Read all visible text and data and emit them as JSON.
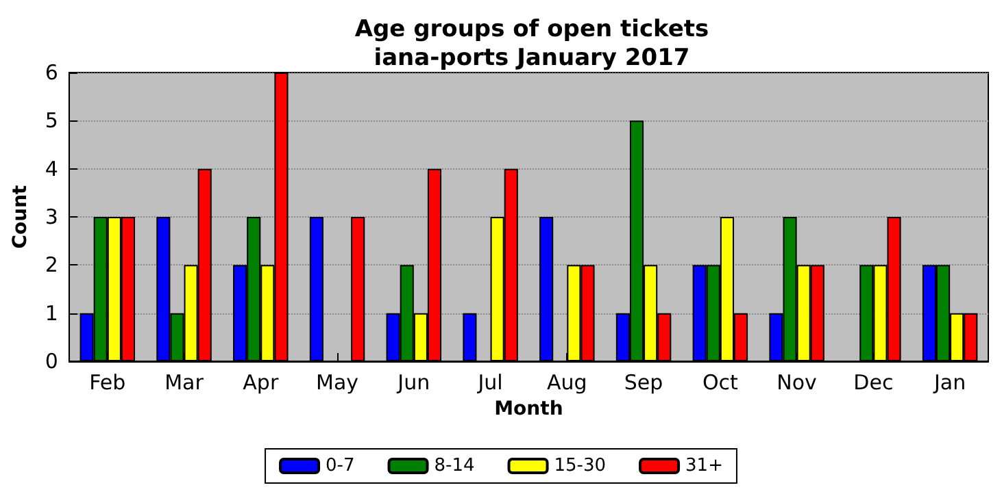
{
  "chart_data": {
    "type": "bar",
    "title": "Age groups of open tickets\niana-ports January 2017",
    "xlabel": "Month",
    "ylabel": "Count",
    "categories": [
      "Feb",
      "Mar",
      "Apr",
      "May",
      "Jun",
      "Jul",
      "Aug",
      "Sep",
      "Oct",
      "Nov",
      "Dec",
      "Jan"
    ],
    "series": [
      {
        "name": "0-7",
        "color": "#0000ff",
        "values": [
          1,
          3,
          2,
          3,
          1,
          1,
          3,
          1,
          2,
          1,
          0,
          2
        ]
      },
      {
        "name": "8-14",
        "color": "#008000",
        "values": [
          3,
          1,
          3,
          0,
          2,
          0,
          0,
          5,
          2,
          3,
          2,
          2
        ]
      },
      {
        "name": "15-30",
        "color": "#ffff00",
        "values": [
          3,
          2,
          2,
          0,
          1,
          3,
          2,
          2,
          3,
          2,
          2,
          1
        ]
      },
      {
        "name": "31+",
        "color": "#ff0000",
        "values": [
          3,
          4,
          6,
          3,
          4,
          4,
          2,
          1,
          1,
          2,
          3,
          1
        ]
      }
    ],
    "ylim": [
      0,
      6
    ],
    "yticks": [
      0,
      1,
      2,
      3,
      4,
      5,
      6
    ],
    "grid": "y",
    "legend": "bottom"
  }
}
